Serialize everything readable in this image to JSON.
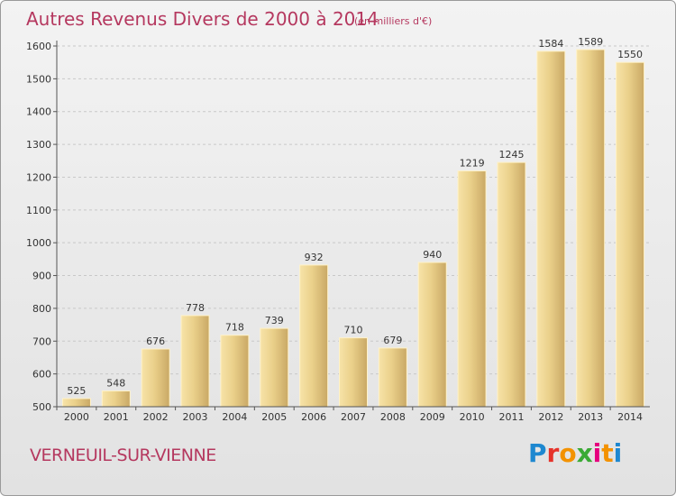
{
  "header": {
    "title": "Autres Revenus Divers de 2000 à 2014",
    "subtitle": "(en milliers d'€)"
  },
  "footer": {
    "city": "VERNEUIL-SUR-VIENNE",
    "logo_letters": [
      "P",
      "r",
      "o",
      "x",
      "i",
      "t",
      "i"
    ],
    "logo_colors": [
      "#1e88d0",
      "#e6332a",
      "#f39200",
      "#3aaa35",
      "#e6007e",
      "#f39200",
      "#1e88d0"
    ]
  },
  "colors": {
    "title": "#b5385f",
    "bar_light": "#f5dd97",
    "bar_dark": "#c9a865",
    "grid": "#c8c8c8"
  },
  "chart_data": {
    "type": "bar",
    "title": "Autres Revenus Divers de 2000 à 2014",
    "subtitle": "(en milliers d'€)",
    "categories": [
      "2000",
      "2001",
      "2002",
      "2003",
      "2004",
      "2005",
      "2006",
      "2007",
      "2008",
      "2009",
      "2010",
      "2011",
      "2012",
      "2013",
      "2014"
    ],
    "values": [
      525,
      548,
      676,
      778,
      718,
      739,
      932,
      710,
      679,
      940,
      1219,
      1245,
      1584,
      1589,
      1550
    ],
    "ylim": [
      500,
      1600
    ],
    "yticks": [
      500,
      600,
      700,
      800,
      900,
      1000,
      1100,
      1200,
      1300,
      1400,
      1500,
      1600
    ],
    "grid": true,
    "xlabel": "",
    "ylabel": ""
  }
}
